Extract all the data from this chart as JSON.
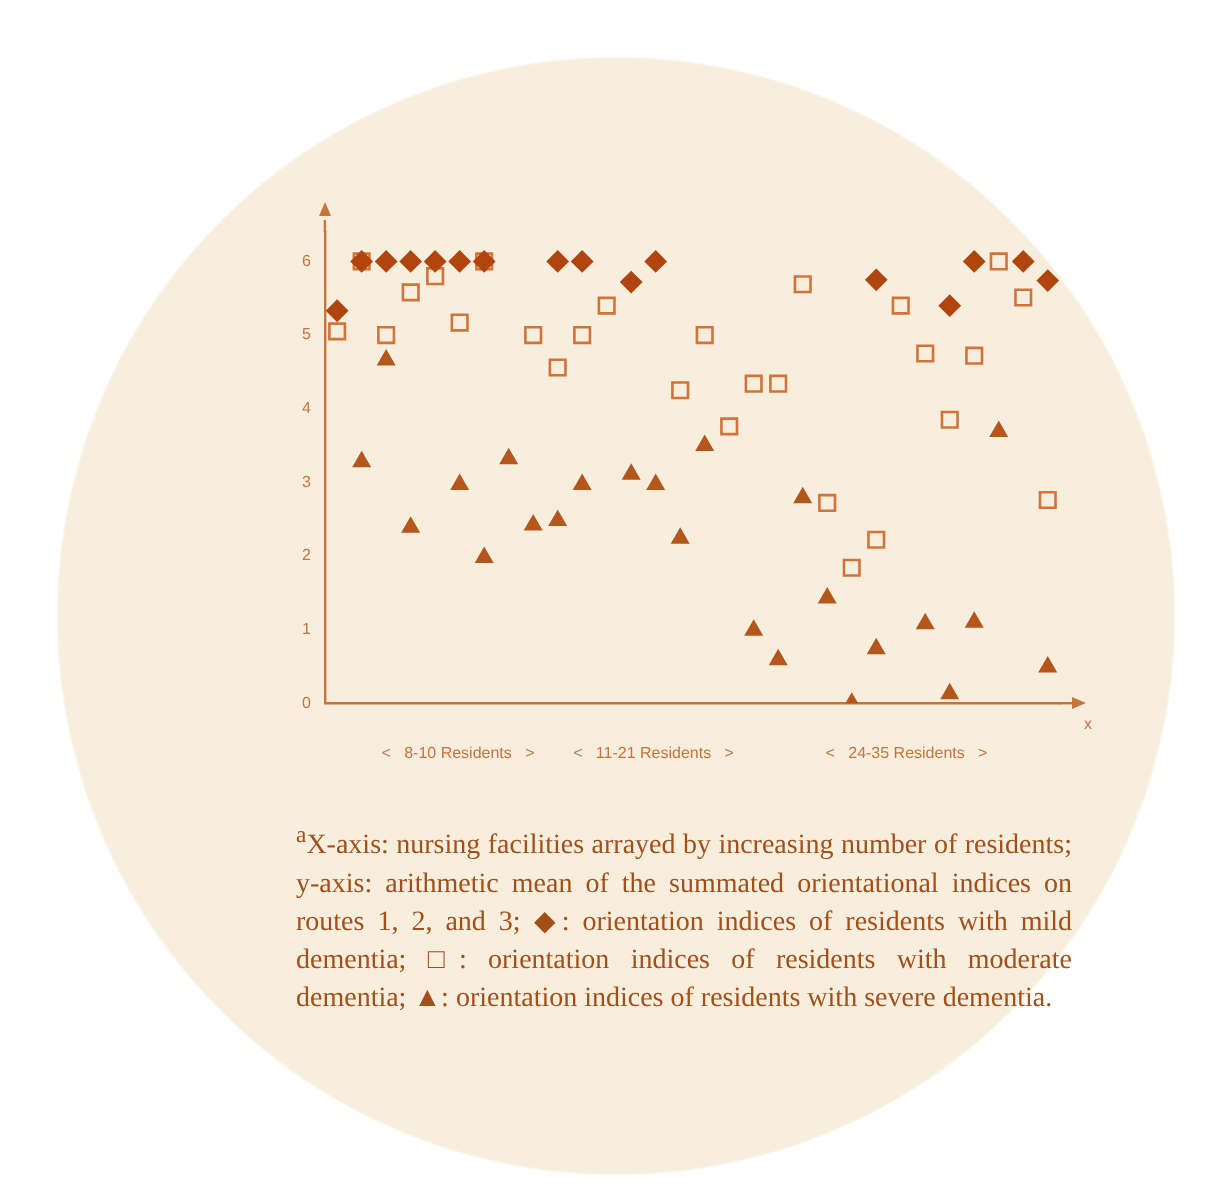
{
  "chart_data": {
    "type": "scatter",
    "categories": [
      null,
      null,
      null,
      null,
      null,
      null,
      null,
      null,
      null,
      null,
      null,
      null,
      null,
      null,
      null,
      null,
      null,
      null,
      null,
      null,
      null,
      null,
      null,
      null,
      null,
      null,
      null,
      null,
      null,
      null
    ],
    "xlabel": "x",
    "series": [
      {
        "color": "#b0450f",
        "marker": "diamond",
        "values": [
          5.33,
          6,
          6,
          6,
          6,
          6,
          6,
          null,
          null,
          6,
          6,
          null,
          5.72,
          6,
          null,
          null,
          null,
          null,
          null,
          null,
          null,
          null,
          5.75,
          null,
          null,
          5.4,
          6,
          null,
          6,
          5.74
        ]
      },
      {
        "color": "#d2733a",
        "marker": "square",
        "values": [
          5.05,
          6,
          5.0,
          5.58,
          5.8,
          5.17,
          6,
          null,
          5.0,
          4.56,
          5.0,
          5.4,
          null,
          null,
          4.25,
          5.0,
          3.76,
          4.34,
          4.34,
          5.69,
          2.72,
          1.84,
          2.22,
          5.4,
          4.75,
          3.85,
          4.72,
          6,
          5.51,
          2.76
        ]
      },
      {
        "color": "#b5561c",
        "marker": "triangle",
        "values": [
          null,
          3.28,
          4.66,
          2.39,
          null,
          2.97,
          1.98,
          3.32,
          2.42,
          2.48,
          2.97,
          null,
          3.11,
          2.97,
          2.24,
          3.5,
          null,
          0.99,
          0.59,
          2.79,
          1.43,
          0,
          0.74,
          null,
          1.08,
          0.13,
          1.1,
          3.69,
          null,
          0.49
        ]
      }
    ],
    "ylim": [
      0,
      6.4
    ],
    "yticks": [
      0,
      1,
      2,
      3,
      4,
      5,
      6
    ],
    "grid": false,
    "legend": false,
    "annotations": [
      "<   8-10 Residents   >",
      "<   11-21 Residents   >",
      "<   24-35 Residents   >",
      "$^{a}$X-axis: nursing facilities arrayed by increasing number of residents; y-axis: arithmetic mean of the summated orientational indices on routes 1, 2, and 3; ◆: orientation indices of residents with mild dementia; □: orientation indices of residents with moderate dementia; ▲: orientation indices of residents with severe dementia."
    ]
  }
}
